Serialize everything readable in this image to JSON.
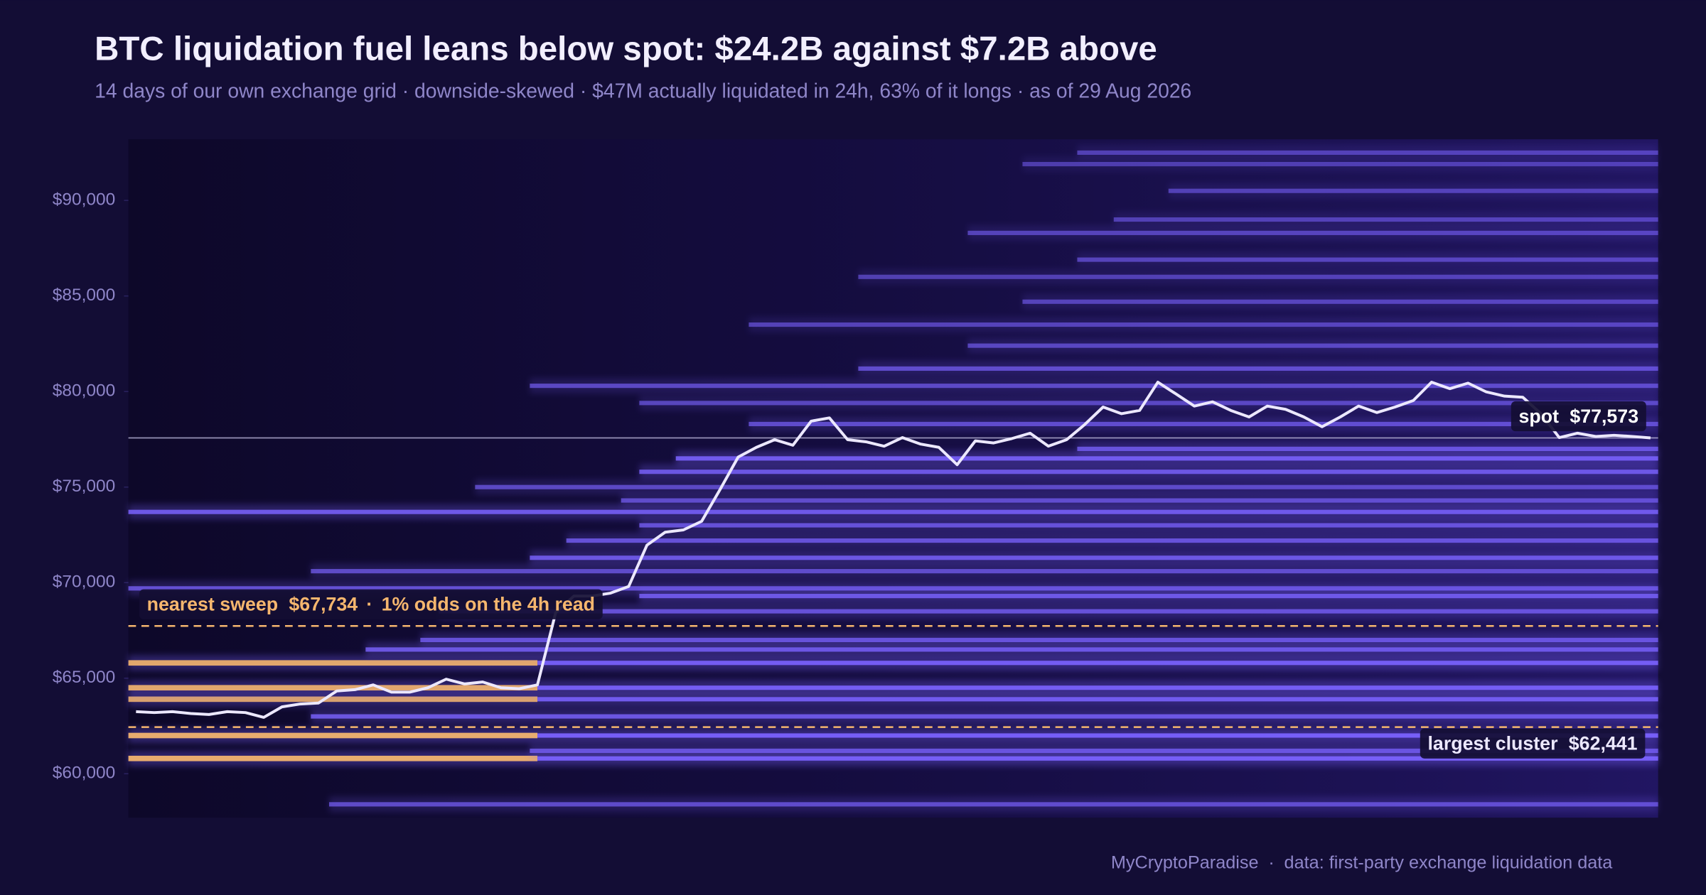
{
  "chart_data": {
    "type": "line",
    "title": "BTC liquidation fuel leans below spot: $24.2B against $7.2B above",
    "subtitle": "14 days of our own exchange grid · downside-skewed · $47M actually liquidated in 24h, 63% of it longs · as of 29 Aug 2026",
    "footer": {
      "source": "MyCryptoParadise",
      "separator": "·",
      "note": "data: first-party exchange liquidation data"
    },
    "values": [
      63250,
      63200,
      63250,
      63150,
      63100,
      63250,
      63200,
      62950,
      63500,
      63650,
      63700,
      64330,
      64400,
      64650,
      64270,
      64270,
      64500,
      64950,
      64700,
      64800,
      64500,
      64450,
      64650,
      68430,
      69300,
      69300,
      69450,
      69800,
      71960,
      72640,
      72760,
      73210,
      74860,
      76570,
      77080,
      77480,
      77190,
      78450,
      78620,
      77480,
      77370,
      77140,
      77590,
      77250,
      77080,
      76170,
      77420,
      77310,
      77540,
      77820,
      77140,
      77480,
      78280,
      79190,
      78840,
      79010,
      80490,
      79870,
      79240,
      79460,
      79010,
      78670,
      79240,
      79070,
      78670,
      78160,
      78670,
      79240,
      78900,
      79190,
      79530,
      80490,
      80150,
      80440,
      79980,
      79760,
      79700,
      78840,
      77590,
      77820,
      77650,
      77710,
      77650,
      77573
    ],
    "color": "#ece8ff",
    "band_color": "#7b63ff",
    "hot_color": "#f5b66e",
    "bands": [
      {
        "price": 60800,
        "start": 0,
        "weight": 0.9,
        "hot_end": 22
      },
      {
        "price": 62000,
        "start": 0,
        "weight": 0.9,
        "hot_end": 22
      },
      {
        "price": 63900,
        "start": 0,
        "weight": 0.8,
        "hot_end": 22
      },
      {
        "price": 64500,
        "start": 0,
        "weight": 0.85,
        "hot_end": 22
      },
      {
        "price": 65800,
        "start": 0,
        "weight": 0.85,
        "hot_end": 22
      },
      {
        "price": 69700,
        "start": 0,
        "weight": 0.6
      },
      {
        "price": 73700,
        "start": 0,
        "weight": 0.75
      },
      {
        "price": 58400,
        "start": 11,
        "weight": 0.5
      },
      {
        "price": 61200,
        "start": 22,
        "weight": 0.6
      },
      {
        "price": 63000,
        "start": 10,
        "weight": 0.7
      },
      {
        "price": 66500,
        "start": 13,
        "weight": 0.7
      },
      {
        "price": 67000,
        "start": 16,
        "weight": 0.6
      },
      {
        "price": 68500,
        "start": 17,
        "weight": 0.6
      },
      {
        "price": 69300,
        "start": 28,
        "weight": 0.7
      },
      {
        "price": 70600,
        "start": 10,
        "weight": 0.5
      },
      {
        "price": 71300,
        "start": 22,
        "weight": 0.7
      },
      {
        "price": 72200,
        "start": 24,
        "weight": 0.6
      },
      {
        "price": 73000,
        "start": 28,
        "weight": 0.6
      },
      {
        "price": 74300,
        "start": 27,
        "weight": 0.5
      },
      {
        "price": 75000,
        "start": 19,
        "weight": 0.45
      },
      {
        "price": 75800,
        "start": 28,
        "weight": 0.7
      },
      {
        "price": 76500,
        "start": 30,
        "weight": 0.8
      },
      {
        "price": 77000,
        "start": 52,
        "weight": 0.6
      },
      {
        "price": 78300,
        "start": 34,
        "weight": 0.5
      },
      {
        "price": 79400,
        "start": 28,
        "weight": 0.4
      },
      {
        "price": 80300,
        "start": 22,
        "weight": 0.45
      },
      {
        "price": 81200,
        "start": 40,
        "weight": 0.5
      },
      {
        "price": 82400,
        "start": 46,
        "weight": 0.4
      },
      {
        "price": 83500,
        "start": 34,
        "weight": 0.35
      },
      {
        "price": 84700,
        "start": 49,
        "weight": 0.35
      },
      {
        "price": 86000,
        "start": 40,
        "weight": 0.3
      },
      {
        "price": 86900,
        "start": 52,
        "weight": 0.35
      },
      {
        "price": 88300,
        "start": 46,
        "weight": 0.35
      },
      {
        "price": 89000,
        "start": 54,
        "weight": 0.3
      },
      {
        "price": 90500,
        "start": 57,
        "weight": 0.3
      },
      {
        "price": 91900,
        "start": 49,
        "weight": 0.25
      },
      {
        "price": 92500,
        "start": 52,
        "weight": 0.3
      }
    ],
    "spot": {
      "label": "spot",
      "value": 77573,
      "value_label": "$77,573"
    },
    "sweep": {
      "label": "nearest sweep",
      "value": 67734,
      "value_label": "$67,734",
      "separator": "·",
      "note": "1% odds on the 4h read"
    },
    "cluster": {
      "label": "largest cluster",
      "value": 62441,
      "value_label": "$62,441"
    },
    "ylim": [
      57700,
      93200
    ],
    "yticks": [
      {
        "value": 60000,
        "label": "$60,000"
      },
      {
        "value": 65000,
        "label": "$65,000"
      },
      {
        "value": 70000,
        "label": "$70,000"
      },
      {
        "value": 75000,
        "label": "$75,000"
      },
      {
        "value": 80000,
        "label": "$80,000"
      },
      {
        "value": 85000,
        "label": "$85,000"
      },
      {
        "value": 90000,
        "label": "$90,000"
      }
    ]
  }
}
